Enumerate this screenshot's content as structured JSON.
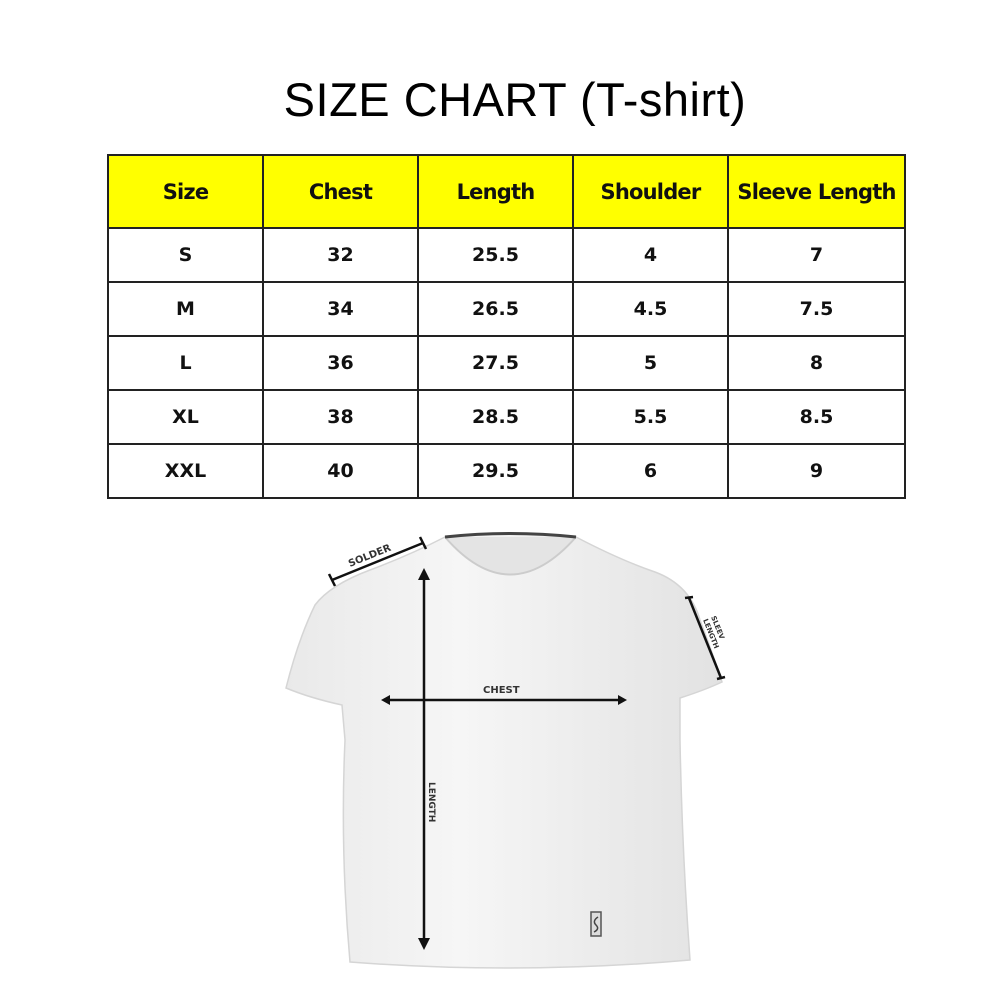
{
  "title": "SIZE CHART (T-shirt)",
  "table": {
    "headers": [
      "Size",
      "Chest",
      "Length",
      "Shoulder",
      "Sleeve Length"
    ],
    "rows": [
      [
        "S",
        "32",
        "25.5",
        "4",
        "7"
      ],
      [
        "M",
        "34",
        "26.5",
        "4.5",
        "7.5"
      ],
      [
        "L",
        "36",
        "27.5",
        "5",
        "8"
      ],
      [
        "XL",
        "38",
        "28.5",
        "5.5",
        "8.5"
      ],
      [
        "XXL",
        "40",
        "29.5",
        "6",
        "9"
      ]
    ],
    "header_color": "#ffff00"
  },
  "diagram": {
    "labels": {
      "shoulder": "SOLDER",
      "chest": "CHEST",
      "length": "LENGTH",
      "sleeve_line1": "SLEEV",
      "sleeve_line2": "LENGTH"
    }
  }
}
